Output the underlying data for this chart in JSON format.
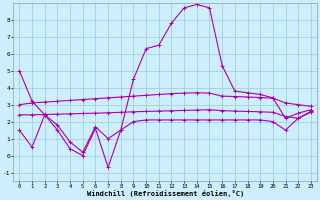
{
  "xlabel": "Windchill (Refroidissement éolien,°C)",
  "bg_color": "#cceeff",
  "line_color": "#aa00aa",
  "grid_color": "#99cccc",
  "xlim": [
    -0.5,
    23.5
  ],
  "ylim": [
    -1.5,
    9.0
  ],
  "yticks": [
    -1,
    0,
    1,
    2,
    3,
    4,
    5,
    6,
    7,
    8
  ],
  "xticks": [
    0,
    1,
    2,
    3,
    4,
    5,
    6,
    7,
    8,
    9,
    10,
    11,
    12,
    13,
    14,
    15,
    16,
    17,
    18,
    19,
    20,
    21,
    22,
    23
  ],
  "line_hump": [
    5.0,
    3.2,
    2.4,
    1.8,
    0.8,
    0.2,
    1.7,
    1.0,
    1.5,
    4.5,
    6.3,
    6.5,
    7.8,
    8.7,
    8.9,
    8.7,
    5.3,
    3.8,
    3.7,
    3.6,
    3.4,
    2.2,
    2.5,
    2.7
  ],
  "line_spiky": [
    1.5,
    0.5,
    2.4,
    1.5,
    0.4,
    0.0,
    1.6,
    -0.7,
    1.5,
    2.0,
    2.1,
    2.1,
    2.1,
    2.1,
    2.1,
    2.1,
    2.1,
    2.1,
    2.1,
    2.1,
    2.0,
    1.5,
    2.2,
    2.6
  ],
  "line_upper_flat": [
    3.0,
    3.1,
    3.15,
    3.2,
    3.25,
    3.3,
    3.35,
    3.4,
    3.45,
    3.5,
    3.55,
    3.6,
    3.65,
    3.68,
    3.7,
    3.68,
    3.5,
    3.48,
    3.45,
    3.42,
    3.38,
    3.1,
    3.0,
    2.9
  ],
  "line_lower_flat": [
    2.4,
    2.4,
    2.42,
    2.44,
    2.46,
    2.48,
    2.5,
    2.52,
    2.55,
    2.58,
    2.6,
    2.62,
    2.64,
    2.66,
    2.68,
    2.7,
    2.65,
    2.62,
    2.6,
    2.58,
    2.55,
    2.3,
    2.2,
    2.55
  ]
}
